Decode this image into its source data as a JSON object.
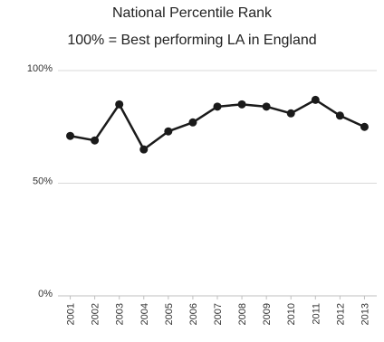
{
  "chart_data": {
    "type": "line",
    "title": "National Percentile Rank",
    "subtitle": "100% = Best performing LA in England",
    "xlabel": "",
    "ylabel": "",
    "x": [
      "2001",
      "2002",
      "2003",
      "2004",
      "2005",
      "2006",
      "2007",
      "2008",
      "2009",
      "2010",
      "2011",
      "2012",
      "2013"
    ],
    "series": [
      {
        "values": [
          71,
          69,
          85,
          65,
          73,
          77,
          84,
          85,
          84,
          81,
          87,
          80,
          75
        ]
      }
    ],
    "ylim": [
      0,
      100
    ],
    "yticks": [
      0,
      50,
      100
    ],
    "ytick_labels": [
      "0%",
      "50%",
      "100%"
    ],
    "grid": true,
    "legend": "none",
    "colors": {
      "line": "#1a1a1a",
      "marker": "#1a1a1a",
      "grid": "#d9d9d9",
      "axis": "#bfbfbf"
    }
  }
}
